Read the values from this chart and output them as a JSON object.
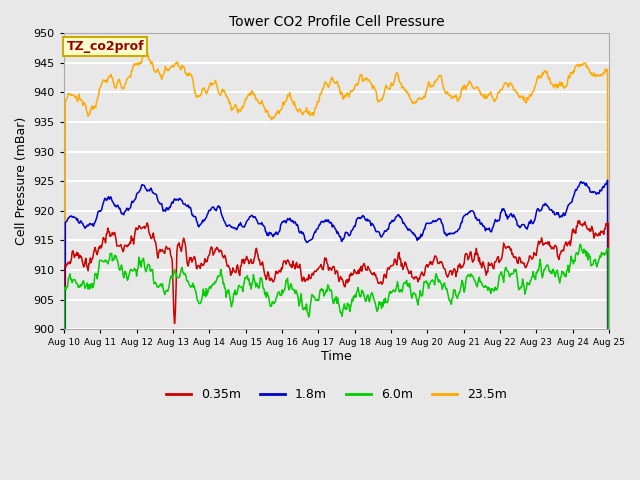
{
  "title": "Tower CO2 Profile Cell Pressure",
  "xlabel": "Time",
  "ylabel": "Cell Pressure (mBar)",
  "ylim": [
    900,
    950
  ],
  "background_color": "#e8e8e8",
  "plot_bg_color": "#e8e8e8",
  "grid_color": "#ffffff",
  "colors": {
    "0.35m": "#cc0000",
    "1.8m": "#0000cc",
    "6.0m": "#00cc00",
    "23.5m": "#ffaa00"
  },
  "legend_label": "TZ_co2prof",
  "legend_bg": "#ffffcc",
  "legend_border": "#ccaa00",
  "tick_labels": [
    "Aug 10",
    "Aug 11",
    "Aug 12",
    "Aug 13",
    "Aug 14",
    "Aug 15",
    "Aug 16",
    "Aug 17",
    "Aug 18",
    "Aug 19",
    "Aug 20",
    "Aug 21",
    "Aug 22",
    "Aug 23",
    "Aug 24",
    "Aug 25"
  ],
  "series_labels": [
    "0.35m",
    "1.8m",
    "6.0m",
    "23.5m"
  ],
  "figsize": [
    6.4,
    4.8
  ],
  "dpi": 100
}
